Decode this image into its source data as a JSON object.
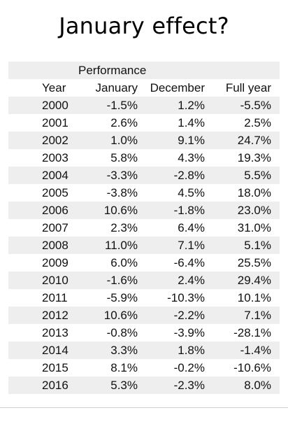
{
  "title": "January effect?",
  "header": {
    "group_label": "Performance",
    "year": "Year",
    "january": "January",
    "december": "December",
    "full_year": "Full year"
  },
  "rows": [
    {
      "year": "2000",
      "january": "-1.5%",
      "december": "1.2%",
      "full_year": "-5.5%"
    },
    {
      "year": "2001",
      "january": "2.6%",
      "december": "1.4%",
      "full_year": "2.5%"
    },
    {
      "year": "2002",
      "january": "1.0%",
      "december": "9.1%",
      "full_year": "24.7%"
    },
    {
      "year": "2003",
      "january": "5.8%",
      "december": "4.3%",
      "full_year": "19.3%"
    },
    {
      "year": "2004",
      "january": "-3.3%",
      "december": "-2.8%",
      "full_year": "5.5%"
    },
    {
      "year": "2005",
      "january": "-3.8%",
      "december": "4.5%",
      "full_year": "18.0%"
    },
    {
      "year": "2006",
      "january": "10.6%",
      "december": "-1.8%",
      "full_year": "23.0%"
    },
    {
      "year": "2007",
      "january": "2.3%",
      "december": "6.4%",
      "full_year": "31.0%"
    },
    {
      "year": "2008",
      "january": "11.0%",
      "december": "7.1%",
      "full_year": "5.1%"
    },
    {
      "year": "2009",
      "january": "6.0%",
      "december": "-6.4%",
      "full_year": "25.5%"
    },
    {
      "year": "2010",
      "january": "-1.6%",
      "december": "2.4%",
      "full_year": "29.4%"
    },
    {
      "year": "2011",
      "january": "-5.9%",
      "december": "-10.3%",
      "full_year": "10.1%"
    },
    {
      "year": "2012",
      "january": "10.6%",
      "december": "-2.2%",
      "full_year": "7.1%"
    },
    {
      "year": "2013",
      "january": "-0.8%",
      "december": "-3.9%",
      "full_year": "-28.1%"
    },
    {
      "year": "2014",
      "january": "3.3%",
      "december": "1.8%",
      "full_year": "-1.4%"
    },
    {
      "year": "2015",
      "january": "8.1%",
      "december": "-0.2%",
      "full_year": "-10.6%"
    },
    {
      "year": "2016",
      "january": "5.3%",
      "december": "-2.3%",
      "full_year": "8.0%"
    }
  ],
  "colors": {
    "row_shade": "#eeeeee",
    "text": "#111111"
  }
}
